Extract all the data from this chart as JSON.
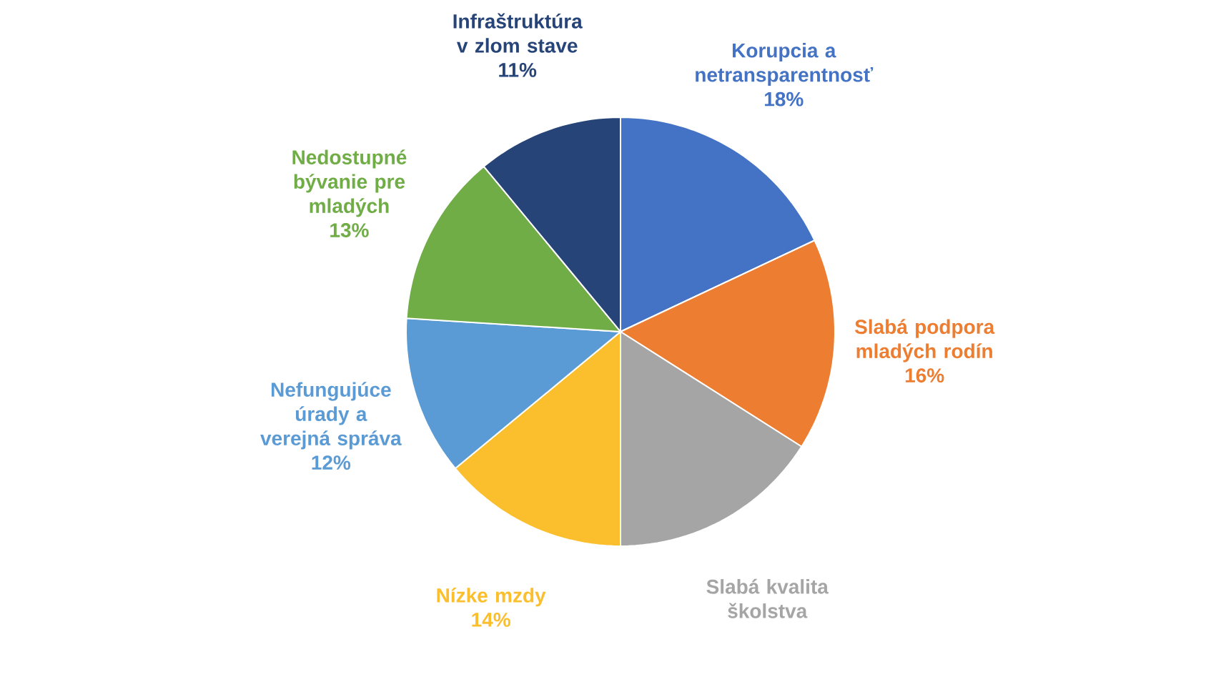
{
  "chart_data": {
    "type": "pie",
    "categories": [
      "Korupcia a netransparentnosť",
      "Slabá podpora mladých rodín",
      "Slabá kvalita školstva",
      "Nízke mzdy",
      "Nefungujúce úrady a verejná správa",
      "Nedostupné bývanie pre mladých",
      "Infraštruktúra v zlom stave"
    ],
    "values": [
      18,
      16,
      16,
      14,
      12,
      13,
      11
    ],
    "colors": [
      "#4472c4",
      "#ed7d31",
      "#a5a5a5",
      "#fbbf2d",
      "#5b9bd5",
      "#70ad47",
      "#264478"
    ],
    "value_labels": [
      "18%",
      "16%",
      null,
      "14%",
      "12%",
      "13%",
      "11%"
    ]
  }
}
